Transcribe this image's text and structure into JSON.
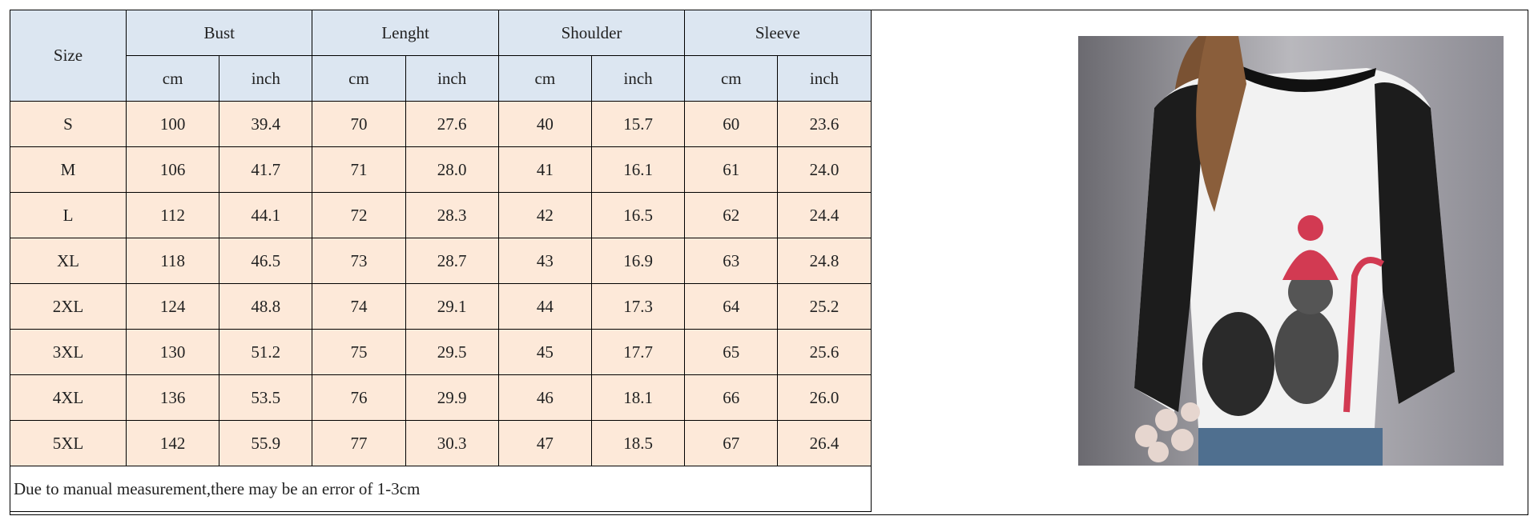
{
  "table": {
    "size_header": "Size",
    "groups": [
      "Bust",
      "Lenght",
      "Shoulder",
      "Sleeve"
    ],
    "units": [
      "cm",
      "inch"
    ],
    "rows": [
      [
        "S",
        "100",
        "39.4",
        "70",
        "27.6",
        "40",
        "15.7",
        "60",
        "23.6"
      ],
      [
        "M",
        "106",
        "41.7",
        "71",
        "28.0",
        "41",
        "16.1",
        "61",
        "24.0"
      ],
      [
        "L",
        "112",
        "44.1",
        "72",
        "28.3",
        "42",
        "16.5",
        "62",
        "24.4"
      ],
      [
        "XL",
        "118",
        "46.5",
        "73",
        "28.7",
        "43",
        "16.9",
        "63",
        "24.8"
      ],
      [
        "2XL",
        "124",
        "48.8",
        "74",
        "29.1",
        "44",
        "17.3",
        "64",
        "25.2"
      ],
      [
        "3XL",
        "130",
        "51.2",
        "75",
        "29.5",
        "45",
        "17.7",
        "65",
        "25.6"
      ],
      [
        "4XL",
        "136",
        "53.5",
        "76",
        "29.9",
        "46",
        "18.1",
        "66",
        "26.0"
      ],
      [
        "5XL",
        "142",
        "55.9",
        "77",
        "30.3",
        "47",
        "18.5",
        "67",
        "26.4"
      ]
    ],
    "note": "Due to manual measurement,there may be an error of 1-3cm"
  }
}
